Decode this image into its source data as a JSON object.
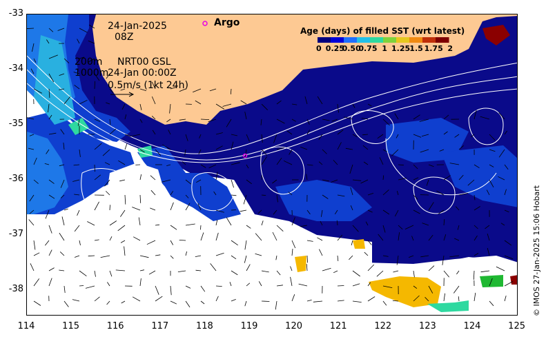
{
  "map": {
    "date": "24-Jan-2025",
    "hour": "08Z",
    "depth_top": "200m",
    "depth_bottom": "1000m",
    "product": "NRT00 GSL",
    "product_time": "24-Jan 00:00Z",
    "scale_label": "0.5m/s (1kt 24h)",
    "argo_label": "Argo",
    "credit": "© IMOS 27-Jan-2025 15:06 Hobart",
    "lon_range": [
      114,
      125
    ],
    "lat_range": [
      -38.5,
      -33
    ]
  },
  "axes": {
    "x_ticks": [
      "114",
      "115",
      "116",
      "117",
      "118",
      "119",
      "120",
      "121",
      "122",
      "123",
      "124",
      "125"
    ],
    "y_ticks": [
      "-33",
      "-34",
      "-35",
      "-36",
      "-37",
      "-38"
    ]
  },
  "colorbar": {
    "title": "Age (days) of filled SST (wrt latest)",
    "ticks": [
      "0",
      "0.25",
      "0.50",
      "0.75",
      "1",
      "1.25",
      "1.5",
      "1.75",
      "2"
    ],
    "colors": [
      "#00007f",
      "#0000d8",
      "#1f6fff",
      "#22c0e8",
      "#2ed9a0",
      "#7fd33c",
      "#e6c81e",
      "#f08a12",
      "#c0300a",
      "#7f0000"
    ]
  },
  "colors": {
    "land": "#fdc993",
    "ocean_age0": "#0a0a8a",
    "ocean_age025": "#0f3fcf",
    "ocean_age05": "#1e78e8",
    "ocean_age075": "#29b0e0",
    "age_1": "#2ed9a0",
    "age_15": "#f5b800",
    "age_2": "#8b0000",
    "green": "#1fb832",
    "argo": "#e600e6"
  }
}
